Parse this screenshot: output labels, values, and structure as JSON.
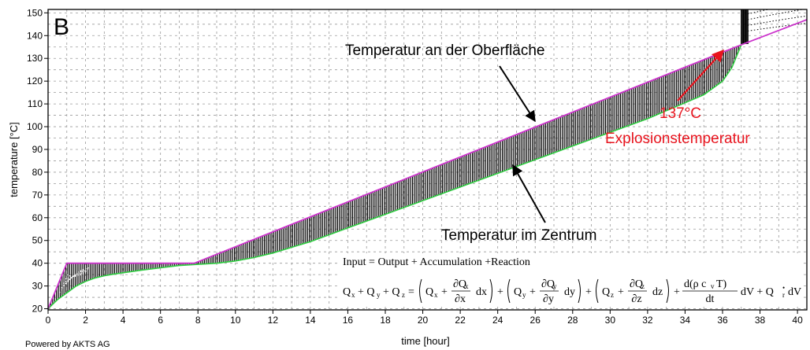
{
  "chart_data": {
    "type": "line",
    "panel_label": "B",
    "xlabel": "time [hour]",
    "ylabel": "temperature [°C]",
    "xlim": [
      0,
      40.5
    ],
    "ylim": [
      19.5,
      151.5
    ],
    "x_ticks": [
      0,
      2,
      4,
      6,
      8,
      10,
      12,
      14,
      16,
      18,
      20,
      22,
      24,
      26,
      28,
      30,
      32,
      34,
      36,
      38,
      40
    ],
    "y_ticks": [
      20,
      30,
      40,
      50,
      60,
      70,
      80,
      90,
      100,
      110,
      120,
      130,
      140,
      150
    ],
    "grid": true,
    "series": [
      {
        "role": "surface",
        "x": [
          0,
          1,
          7.8,
          37,
          40.5
        ],
        "y": [
          20,
          40,
          40,
          136,
          147
        ]
      },
      {
        "role": "center",
        "x": [
          0,
          0.5,
          1,
          1.5,
          2,
          2.5,
          3,
          3.5,
          4,
          5,
          6,
          7,
          8,
          9,
          10,
          11,
          12,
          14,
          16,
          18,
          20,
          22,
          24,
          26,
          28,
          30,
          32,
          34,
          35,
          36,
          36.5,
          37
        ],
        "y": [
          20,
          24,
          27,
          30,
          32,
          33.5,
          34.5,
          35.2,
          35.8,
          37,
          38,
          39,
          39.5,
          40,
          41,
          42.5,
          44.5,
          49.5,
          55.5,
          61.5,
          67.5,
          73.5,
          79.5,
          85.5,
          91.5,
          97.5,
          103.5,
          110.5,
          114,
          120,
          126,
          136
        ]
      }
    ],
    "annotations": {
      "surface_label": "Temperatur an der Oberfläche",
      "center_label": "Temperatur im Zentrum",
      "explosion_value": "137°C",
      "explosion_label": "Explosionstemperatur",
      "explosion_point": [
        37,
        137
      ]
    },
    "equation": {
      "line1": "Input = Output + Accumulation +Reaction",
      "line2_parts": [
        "Q",
        "x",
        "+ Q",
        "y",
        "+ Q",
        "z",
        "=",
        "Q",
        "x",
        "+",
        "∂Q",
        "x",
        "∂x",
        "dx",
        "Q",
        "y",
        "+",
        "∂Q",
        "y",
        "∂y",
        "dy",
        "Q",
        "z",
        "+",
        "∂Q",
        "z",
        "∂z",
        "dz",
        "+",
        "d(ρ c",
        "v",
        "T)",
        "dt",
        "dV + Q",
        "r",
        "•",
        "dV"
      ]
    },
    "footer": "Powered by AKTS AG",
    "colors": {
      "band": "#000000",
      "surface_line": "#cc33cc",
      "center_line": "#2ecc40",
      "highlight": "#e8141e",
      "grid": "#9a9a9a"
    }
  }
}
